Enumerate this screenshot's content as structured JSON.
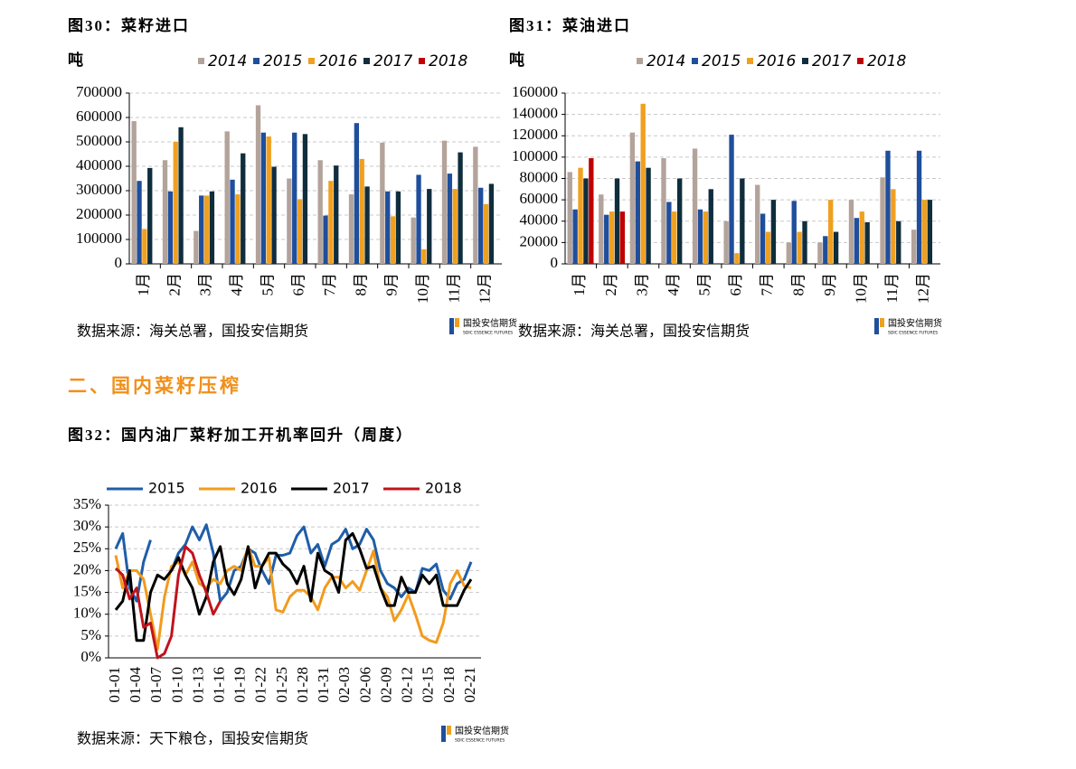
{
  "chart_data": [
    {
      "type": "bar",
      "title": "图30：菜籽进口",
      "y_label": "吨",
      "source": "数据来源：海关总署，国投安信期货",
      "categories": [
        "1月",
        "2月",
        "3月",
        "4月",
        "5月",
        "6月",
        "7月",
        "8月",
        "9月",
        "10月",
        "11月",
        "12月"
      ],
      "ylim": [
        0,
        700000
      ],
      "yticks": [
        0,
        100000,
        200000,
        300000,
        400000,
        500000,
        600000,
        700000
      ],
      "grid": true,
      "series": [
        {
          "name": "2014",
          "color": "#b3a39a",
          "values": [
            585000,
            425000,
            135000,
            543000,
            650000,
            350000,
            425000,
            285000,
            497000,
            190000,
            505000,
            480000
          ]
        },
        {
          "name": "2015",
          "color": "#1f4e9c",
          "values": [
            340000,
            297000,
            280000,
            345000,
            538000,
            538000,
            198000,
            577000,
            297000,
            365000,
            370000,
            312000
          ]
        },
        {
          "name": "2016",
          "color": "#f0a01f",
          "values": [
            143000,
            500000,
            280000,
            285000,
            522000,
            265000,
            340000,
            430000,
            195000,
            60000,
            307000,
            245000
          ]
        },
        {
          "name": "2017",
          "color": "#0f2d3d",
          "values": [
            393000,
            560000,
            297000,
            453000,
            398000,
            532000,
            403000,
            317000,
            297000,
            307000,
            457000,
            328000
          ]
        },
        {
          "name": "2018",
          "color": "#c00000",
          "values": [
            null,
            null,
            null,
            null,
            null,
            null,
            null,
            null,
            null,
            null,
            null,
            null
          ]
        }
      ]
    },
    {
      "type": "bar",
      "title": "图31：菜油进口",
      "y_label": "吨",
      "source": "数据来源：海关总署，国投安信期货",
      "categories": [
        "1月",
        "2月",
        "3月",
        "4月",
        "5月",
        "6月",
        "7月",
        "8月",
        "9月",
        "10月",
        "11月",
        "12月"
      ],
      "ylim": [
        0,
        160000
      ],
      "yticks": [
        0,
        20000,
        40000,
        60000,
        80000,
        100000,
        120000,
        140000,
        160000
      ],
      "grid": true,
      "series": [
        {
          "name": "2014",
          "color": "#b3a39a",
          "values": [
            86000,
            65000,
            123000,
            99000,
            108000,
            40000,
            74000,
            20000,
            20000,
            60000,
            81000,
            32000
          ]
        },
        {
          "name": "2015",
          "color": "#1f4e9c",
          "values": [
            51000,
            46000,
            96000,
            58000,
            51000,
            121000,
            47000,
            59000,
            26000,
            43000,
            106000,
            106000
          ]
        },
        {
          "name": "2016",
          "color": "#f0a01f",
          "values": [
            90000,
            49000,
            150000,
            49000,
            49000,
            10000,
            30000,
            30000,
            60000,
            49000,
            70000,
            60000
          ]
        },
        {
          "name": "2017",
          "color": "#0f2d3d",
          "values": [
            80000,
            80000,
            90000,
            80000,
            70000,
            80000,
            60000,
            40000,
            30000,
            39000,
            40000,
            60000
          ]
        },
        {
          "name": "2018",
          "color": "#c00000",
          "values": [
            99000,
            49000,
            null,
            null,
            null,
            null,
            null,
            null,
            null,
            null,
            null,
            null
          ]
        }
      ]
    },
    {
      "type": "line",
      "title": "图32：国内油厂菜籽加工开机率回升（周度）",
      "source": "数据来源：天下粮仓，国投安信期货",
      "categories": [
        "01-01",
        null,
        null,
        "01-04",
        null,
        null,
        "01-07",
        null,
        null,
        "01-10",
        null,
        null,
        "01-13",
        null,
        null,
        "01-16",
        null,
        null,
        "01-19",
        null,
        null,
        "01-22",
        null,
        null,
        "01-25",
        null,
        null,
        "01-28",
        null,
        null,
        "01-31",
        null,
        null,
        "02-03",
        null,
        null,
        "02-06",
        null,
        null,
        "02-09",
        null,
        null,
        "02-12",
        null,
        null,
        "02-15",
        null,
        null,
        "02-18",
        null,
        null,
        "02-21"
      ],
      "ylim": [
        0,
        35
      ],
      "yticks": [
        {
          "value": 0,
          "label": "0%"
        },
        {
          "value": 5,
          "label": "5%"
        },
        {
          "value": 10,
          "label": "10%"
        },
        {
          "value": 15,
          "label": "15%"
        },
        {
          "value": 20,
          "label": "20%"
        },
        {
          "value": 25,
          "label": "25%"
        },
        {
          "value": 30,
          "label": "30%"
        },
        {
          "value": 35,
          "label": "35%"
        }
      ],
      "grid": true,
      "series": [
        {
          "name": "2015",
          "color": "#1f5ea8",
          "values": [
            25,
            28.5,
            16,
            13,
            22,
            27,
            null,
            null,
            20,
            24,
            26,
            30,
            27,
            30.5,
            24,
            13,
            15,
            20,
            21,
            25,
            24,
            20,
            17,
            23.5,
            23.5,
            24,
            28,
            30,
            24,
            26,
            21,
            26,
            27,
            29.5,
            25,
            26,
            29.5,
            27,
            20,
            17,
            16,
            14,
            16,
            15,
            20.5,
            20,
            21.5,
            15.5,
            13.5,
            17,
            18,
            22
          ]
        },
        {
          "name": "2016",
          "color": "#f29b1d",
          "values": [
            23.5,
            16,
            20,
            20,
            18,
            10,
            2,
            14,
            21,
            22,
            19,
            22,
            17,
            16,
            18,
            17,
            20,
            21,
            20,
            25.5,
            21,
            21,
            23,
            11,
            10.5,
            14,
            15.5,
            15.5,
            14,
            11,
            16,
            18.5,
            18.5,
            16,
            17.5,
            15.5,
            20,
            24.5,
            16,
            14,
            8.5,
            11,
            14.5,
            10,
            5,
            4,
            3.5,
            8,
            17,
            20,
            16.5,
            16
          ]
        },
        {
          "name": "2017",
          "color": "#000000",
          "values": [
            11,
            13,
            20,
            4,
            4,
            15,
            19,
            18,
            20,
            23,
            19,
            16,
            10,
            14,
            22,
            25.5,
            17,
            14.5,
            18,
            25.5,
            16,
            21,
            24,
            24,
            21.5,
            20,
            17,
            21,
            13,
            24,
            20,
            19,
            15,
            27,
            28.5,
            25,
            20.5,
            21,
            16,
            12,
            12,
            18.5,
            15,
            15,
            19,
            17,
            19,
            12,
            12,
            12,
            15.5,
            18
          ]
        },
        {
          "name": "2018",
          "color": "#c0141c",
          "values": [
            20.5,
            19,
            13.5,
            16,
            7,
            8,
            0,
            1,
            5,
            19,
            25.5,
            24,
            19,
            15,
            10,
            13,
            null,
            null,
            null,
            null,
            null,
            null,
            null,
            null,
            null,
            null,
            null,
            null,
            null,
            null,
            null,
            null,
            null,
            null,
            null,
            null,
            null,
            null,
            null,
            null,
            null,
            null,
            null,
            null,
            null,
            null,
            null,
            null,
            null,
            null,
            null,
            null
          ]
        }
      ]
    }
  ],
  "section_heading": "二、国内菜籽压榨",
  "logo": {
    "name": "国投安信期货",
    "english": "SDIC ESSENCE FUTURES"
  }
}
